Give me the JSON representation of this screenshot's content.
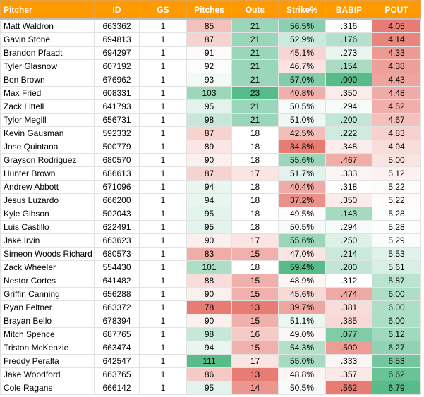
{
  "table": {
    "columns": [
      "Pitcher",
      "ID",
      "GS",
      "Pitches",
      "Outs",
      "Strike%",
      "BABIP",
      "POUT"
    ],
    "rows": [
      [
        "Matt Waldron",
        "663362",
        "1",
        "85",
        "21",
        "56.5%",
        ".316",
        "4.05"
      ],
      [
        "Gavin Stone",
        "694813",
        "1",
        "87",
        "21",
        "52.9%",
        ".176",
        "4.14"
      ],
      [
        "Brandon Pfaadt",
        "694297",
        "1",
        "91",
        "21",
        "45.1%",
        ".273",
        "4.33"
      ],
      [
        "Tyler Glasnow",
        "607192",
        "1",
        "92",
        "21",
        "46.7%",
        ".154",
        "4.38"
      ],
      [
        "Ben Brown",
        "676962",
        "1",
        "93",
        "21",
        "57.0%",
        ".000",
        "4.43"
      ],
      [
        "Max Fried",
        "608331",
        "1",
        "103",
        "23",
        "40.8%",
        ".350",
        "4.48"
      ],
      [
        "Zack Littell",
        "641793",
        "1",
        "95",
        "21",
        "50.5%",
        ".294",
        "4.52"
      ],
      [
        "Tylor Megill",
        "656731",
        "1",
        "98",
        "21",
        "51.0%",
        ".200",
        "4.67"
      ],
      [
        "Kevin Gausman",
        "592332",
        "1",
        "87",
        "18",
        "42.5%",
        ".222",
        "4.83"
      ],
      [
        "Jose Quintana",
        "500779",
        "1",
        "89",
        "18",
        "34.8%",
        ".348",
        "4.94"
      ],
      [
        "Grayson Rodriguez",
        "680570",
        "1",
        "90",
        "18",
        "55.6%",
        ".467",
        "5.00"
      ],
      [
        "Hunter Brown",
        "686613",
        "1",
        "87",
        "17",
        "51.7%",
        ".333",
        "5.12"
      ],
      [
        "Andrew Abbott",
        "671096",
        "1",
        "94",
        "18",
        "40.4%",
        ".318",
        "5.22"
      ],
      [
        "Jesus Luzardo",
        "666200",
        "1",
        "94",
        "18",
        "37.2%",
        ".350",
        "5.22"
      ],
      [
        "Kyle Gibson",
        "502043",
        "1",
        "95",
        "18",
        "49.5%",
        ".143",
        "5.28"
      ],
      [
        "Luis Castillo",
        "622491",
        "1",
        "95",
        "18",
        "50.5%",
        ".294",
        "5.28"
      ],
      [
        "Jake Irvin",
        "663623",
        "1",
        "90",
        "17",
        "55.6%",
        ".250",
        "5.29"
      ],
      [
        "Simeon Woods Richard",
        "680573",
        "1",
        "83",
        "15",
        "47.0%",
        ".214",
        "5.53"
      ],
      [
        "Zack Wheeler",
        "554430",
        "1",
        "101",
        "18",
        "59.4%",
        ".200",
        "5.61"
      ],
      [
        "Nestor Cortes",
        "641482",
        "1",
        "88",
        "15",
        "48.9%",
        ".312",
        "5.87"
      ],
      [
        "Griffin Canning",
        "656288",
        "1",
        "90",
        "15",
        "45.6%",
        ".474",
        "6.00"
      ],
      [
        "Ryan Feltner",
        "663372",
        "1",
        "78",
        "13",
        "39.7%",
        ".381",
        "6.00"
      ],
      [
        "Brayan Bello",
        "678394",
        "1",
        "90",
        "15",
        "51.1%",
        ".385",
        "6.00"
      ],
      [
        "Mitch Spence",
        "687765",
        "1",
        "98",
        "16",
        "49.0%",
        ".077",
        "6.12"
      ],
      [
        "Triston McKenzie",
        "663474",
        "1",
        "94",
        "15",
        "54.3%",
        ".500",
        "6.27"
      ],
      [
        "Freddy Peralta",
        "642547",
        "1",
        "111",
        "17",
        "55.0%",
        ".333",
        "6.53"
      ],
      [
        "Jake Woodford",
        "663765",
        "1",
        "86",
        "13",
        "48.8%",
        ".357",
        "6.62"
      ],
      [
        "Cole Ragans",
        "666142",
        "1",
        "95",
        "14",
        "50.5%",
        ".562",
        "6.79"
      ]
    ]
  }
}
